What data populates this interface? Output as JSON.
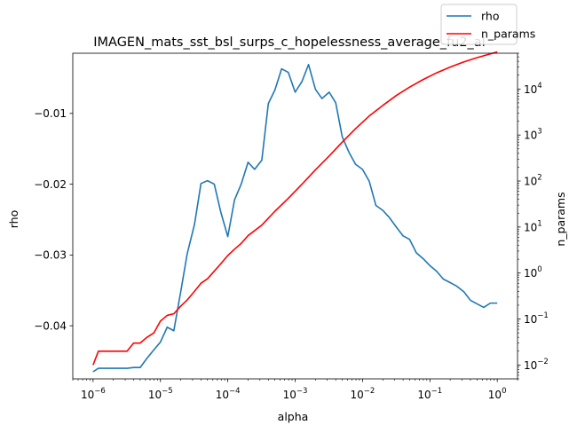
{
  "chart_data": {
    "type": "line",
    "title": "IMAGEN_mats_sst_bsl_surps_c_hopelessness_average_fu2_al",
    "xlabel": "alpha",
    "ylabel": "rho",
    "y2label": "n_params",
    "xscale": "log",
    "y2scale": "log",
    "xlim": [
      5e-07,
      2
    ],
    "ylim": [
      -0.0475,
      -0.0015
    ],
    "y2lim": [
      0.005,
      60000
    ],
    "xticks": [
      {
        "exp": -6,
        "base": "10",
        "sup": "−6"
      },
      {
        "exp": -5,
        "base": "10",
        "sup": "−5"
      },
      {
        "exp": -4,
        "base": "10",
        "sup": "−4"
      },
      {
        "exp": -3,
        "base": "10",
        "sup": "−3"
      },
      {
        "exp": -2,
        "base": "10",
        "sup": "−2"
      },
      {
        "exp": -1,
        "base": "10",
        "sup": "−1"
      },
      {
        "exp": 0,
        "base": "10",
        "sup": "0"
      }
    ],
    "yticks": [
      {
        "value": -0.04,
        "label": "−0.04"
      },
      {
        "value": -0.03,
        "label": "−0.03"
      },
      {
        "value": -0.02,
        "label": "−0.02"
      },
      {
        "value": -0.01,
        "label": "−0.01"
      }
    ],
    "y2ticks": [
      {
        "exp": -2,
        "base": "10",
        "sup": "−2"
      },
      {
        "exp": -1,
        "base": "10",
        "sup": "−1"
      },
      {
        "exp": 0,
        "base": "10",
        "sup": "0"
      },
      {
        "exp": 1,
        "base": "10",
        "sup": "1"
      },
      {
        "exp": 2,
        "base": "10",
        "sup": "2"
      },
      {
        "exp": 3,
        "base": "10",
        "sup": "3"
      },
      {
        "exp": 4,
        "base": "10",
        "sup": "4"
      }
    ],
    "legend": {
      "placement": "top-right",
      "entries": [
        "rho",
        "n_params"
      ]
    },
    "series": [
      {
        "name": "rho",
        "axis": "left",
        "color": "#1f77b4",
        "x": [
          1e-06,
          1.2e-06,
          1.6e-06,
          2e-06,
          2.6e-06,
          3.2e-06,
          4e-06,
          5e-06,
          6.3e-06,
          8e-06,
          1e-05,
          1.26e-05,
          1.58e-05,
          2e-05,
          2.5e-05,
          3.2e-05,
          4e-05,
          5e-05,
          6.3e-05,
          7.9e-05,
          0.0001,
          0.000126,
          0.000158,
          0.0002,
          0.00025,
          0.00032,
          0.0004,
          0.0005,
          0.00063,
          0.00079,
          0.001,
          0.00126,
          0.00158,
          0.002,
          0.0025,
          0.0032,
          0.004,
          0.005,
          0.0063,
          0.0079,
          0.01,
          0.0126,
          0.0158,
          0.02,
          0.025,
          0.032,
          0.04,
          0.05,
          0.063,
          0.079,
          0.1,
          0.126,
          0.158,
          0.2,
          0.25,
          0.32,
          0.4,
          0.5,
          0.63,
          0.79,
          1.0
        ],
        "y": [
          -0.0465,
          -0.046,
          -0.046,
          -0.046,
          -0.046,
          -0.046,
          -0.0459,
          -0.0459,
          -0.0446,
          -0.0434,
          -0.0423,
          -0.0402,
          -0.0407,
          -0.0352,
          -0.0298,
          -0.0257,
          -0.0199,
          -0.0195,
          -0.02,
          -0.024,
          -0.0274,
          -0.0222,
          -0.02,
          -0.0169,
          -0.0179,
          -0.0166,
          -0.0086,
          -0.0067,
          -0.0037,
          -0.0042,
          -0.007,
          -0.0055,
          -0.0031,
          -0.0066,
          -0.0079,
          -0.007,
          -0.0085,
          -0.0133,
          -0.0155,
          -0.0172,
          -0.0179,
          -0.0196,
          -0.023,
          -0.0237,
          -0.0247,
          -0.0261,
          -0.0273,
          -0.0278,
          -0.0297,
          -0.0305,
          -0.0315,
          -0.0323,
          -0.0334,
          -0.0339,
          -0.0344,
          -0.0352,
          -0.0364,
          -0.0369,
          -0.0374,
          -0.0368,
          -0.0368
        ]
      },
      {
        "name": "n_params",
        "axis": "right",
        "color": "#ff0000",
        "x": [
          1e-06,
          1.2e-06,
          1.6e-06,
          2e-06,
          2.6e-06,
          3.2e-06,
          4e-06,
          5e-06,
          6.3e-06,
          8e-06,
          1e-05,
          1.26e-05,
          1.58e-05,
          2e-05,
          2.5e-05,
          3.2e-05,
          4e-05,
          5e-05,
          6.3e-05,
          7.9e-05,
          0.0001,
          0.000126,
          0.000158,
          0.0002,
          0.00032,
          0.0005,
          0.00079,
          0.00126,
          0.002,
          0.0032,
          0.005,
          0.0079,
          0.0126,
          0.02,
          0.032,
          0.05,
          0.079,
          0.126,
          0.2,
          0.32,
          0.5,
          0.79,
          1.0
        ],
        "y": [
          0.01,
          0.02,
          0.02,
          0.02,
          0.02,
          0.02,
          0.03,
          0.03,
          0.04,
          0.05,
          0.09,
          0.12,
          0.13,
          0.19,
          0.26,
          0.4,
          0.6,
          0.75,
          1.1,
          1.6,
          2.4,
          3.3,
          4.4,
          6.5,
          11,
          22,
          42,
          85,
          175,
          350,
          700,
          1380,
          2600,
          4400,
          7300,
          11000,
          16000,
          22500,
          30000,
          39000,
          48000,
          58000,
          64000
        ]
      }
    ]
  }
}
